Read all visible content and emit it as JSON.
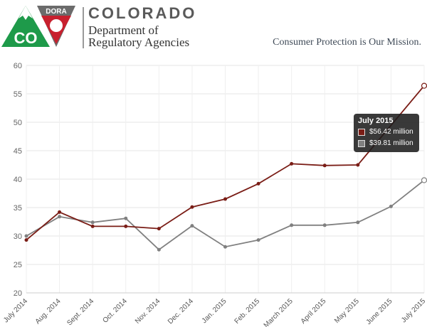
{
  "header": {
    "logo": {
      "co_text": "CO",
      "dora_text": "DORA",
      "colors": {
        "green": "#1e9a4a",
        "red": "#c8202e",
        "gray": "#6b6b6b"
      }
    },
    "state_name": "COLORADO",
    "department_line1": "Department of",
    "department_line2": "Regulatory Agencies",
    "mission": "Consumer Protection is Our Mission."
  },
  "tooltip": {
    "title": "July 2015",
    "rows": [
      {
        "value": "$56.42 million",
        "color": "#7a1d16"
      },
      {
        "value": "$39.81 million",
        "color": "#808080"
      }
    ]
  },
  "chart_data": {
    "type": "line",
    "categories": [
      "July 2014",
      "Aug. 2014",
      "Sept. 2014",
      "Oct. 2014",
      "Nov. 2014",
      "Dec. 2014",
      "Jan. 2015",
      "Feb. 2015",
      "March 2015",
      "April 2015",
      "May 2015",
      "June 2015",
      "July 2015"
    ],
    "series": [
      {
        "color": "#7a1d16",
        "values": [
          29.3,
          34.2,
          31.7,
          31.7,
          31.3,
          35.1,
          36.5,
          39.2,
          42.7,
          42.4,
          42.5,
          null,
          56.42
        ]
      },
      {
        "color": "#808080",
        "values": [
          30.0,
          33.4,
          32.4,
          33.1,
          27.6,
          31.8,
          28.1,
          29.3,
          31.9,
          31.9,
          32.4,
          35.2,
          39.81
        ]
      }
    ],
    "ylim": [
      20,
      60
    ],
    "yticks": [
      20,
      25,
      30,
      35,
      40,
      45,
      50,
      55,
      60
    ],
    "grid": true,
    "highlight_index": 12
  }
}
